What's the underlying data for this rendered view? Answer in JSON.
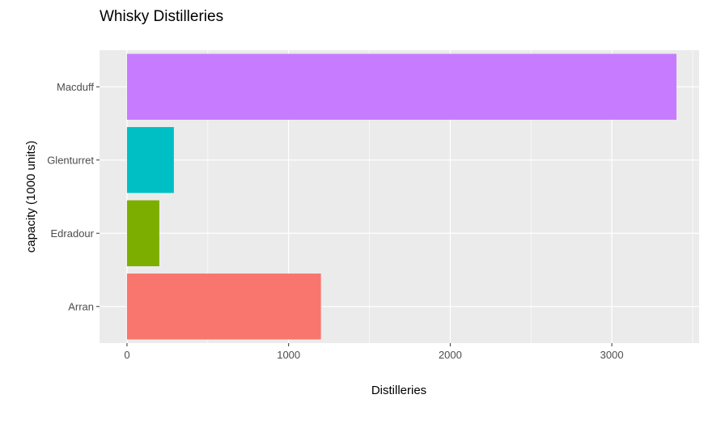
{
  "chart_data": {
    "type": "bar",
    "orientation": "horizontal",
    "title": "Whisky Distilleries",
    "xlabel": "Distilleries",
    "ylabel": "capacity (1000 units)",
    "categories": [
      "Arran",
      "Edradour",
      "Glenturret",
      "Macduff"
    ],
    "values": [
      1200,
      200,
      290,
      3400
    ],
    "colors": [
      "#F8766D",
      "#7CAE00",
      "#00BFC4",
      "#C77CFF"
    ],
    "xlim": [
      -170,
      3540
    ],
    "xticks": [
      0,
      1000,
      2000,
      3000
    ],
    "xtick_labels": [
      "0",
      "1000",
      "2000",
      "3000"
    ],
    "grid": true,
    "panel_background": "#EBEBEB",
    "gridline_color": "#FFFFFF",
    "legend": "none"
  }
}
